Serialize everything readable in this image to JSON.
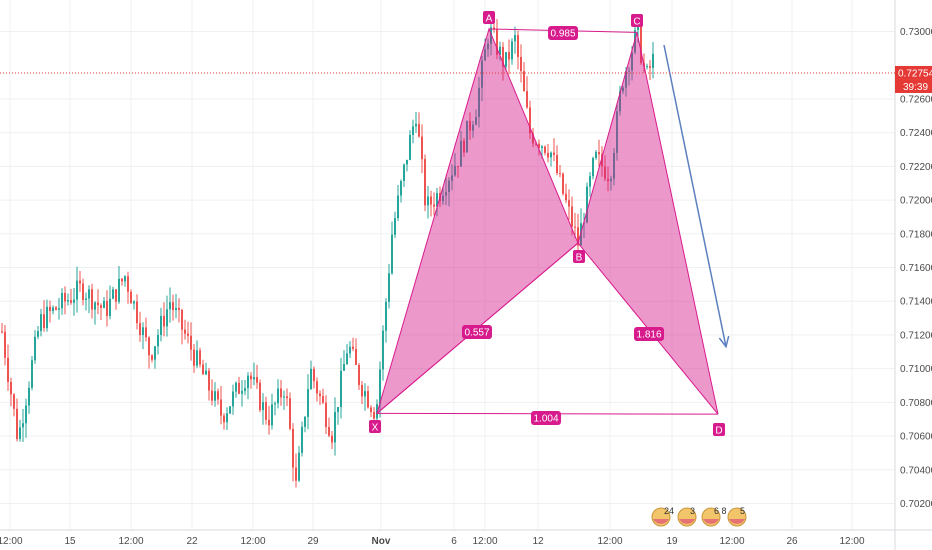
{
  "chart_data": {
    "type": "candlestick",
    "y_axis": {
      "range": [
        0.701,
        0.7318
      ],
      "ticks": [
        "0.73000",
        "0.72600",
        "0.72400",
        "0.72200",
        "0.72000",
        "0.71800",
        "0.71600",
        "0.71400",
        "0.71200",
        "0.71000",
        "0.70800",
        "0.70600",
        "0.70400",
        "0.70200"
      ]
    },
    "x_axis": {
      "ticks": [
        "12:00",
        "15",
        "12:00",
        "22",
        "12:00",
        "29",
        "Nov",
        "6",
        "12:00",
        "12",
        "12:00",
        "19",
        "12:00",
        "26",
        "12:00"
      ]
    },
    "current_price": {
      "value": 0.72754,
      "label": "0.72754",
      "countdown": "39:39",
      "color": "#e53935"
    },
    "harmonic_pattern": {
      "color": "#d81b8c",
      "points": [
        {
          "label": "X",
          "price": 0.70735
        },
        {
          "label": "A",
          "price": 0.73015
        },
        {
          "label": "B",
          "price": 0.71745
        },
        {
          "label": "C",
          "price": 0.72995
        },
        {
          "label": "D",
          "price": 0.7073
        }
      ],
      "ratios": [
        {
          "label": "0.985",
          "between": "A-C"
        },
        {
          "label": "0.557",
          "between": "X-B"
        },
        {
          "label": "1.816",
          "between": "B-D"
        },
        {
          "label": "1.004",
          "between": "X-D"
        }
      ]
    },
    "projection_arrow": {
      "color": "#5c7fbf",
      "from_price": 0.7292,
      "to_price": 0.7113
    },
    "candle_colors": {
      "up": "#26a69a",
      "down": "#ef5350"
    },
    "event_badges": [
      "24",
      "3",
      "6",
      "8",
      "5"
    ],
    "grid": true
  }
}
